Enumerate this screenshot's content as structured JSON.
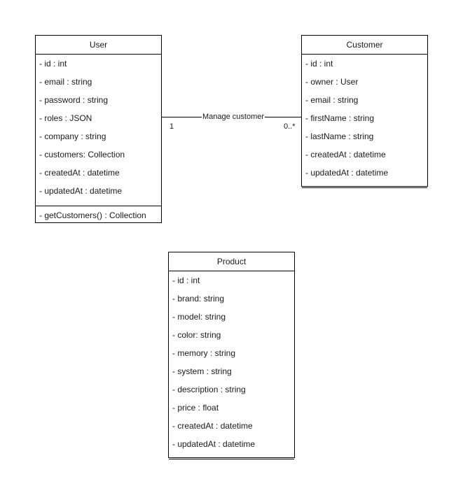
{
  "classes": {
    "user": {
      "name": "User",
      "attributes": [
        "- id : int",
        "- email : string",
        "- password : string",
        "- roles : JSON",
        "- company : string",
        "- customers: Collection",
        "- createdAt : datetime",
        "- updatedAt : datetime"
      ],
      "methods": [
        "- getCustomers() : Collection"
      ]
    },
    "customer": {
      "name": "Customer",
      "attributes": [
        "- id : int",
        "- owner : User",
        "- email : string",
        "- firstName : string",
        "- lastName : string",
        "- createdAt : datetime",
        "- updatedAt : datetime"
      ],
      "methods": []
    },
    "product": {
      "name": "Product",
      "attributes": [
        "- id : int",
        "- brand: string",
        "- model: string",
        "- color: string",
        "- memory : string",
        "- system : string",
        "- description : string",
        "- price : float",
        "- createdAt : datetime",
        "- updatedAt : datetime"
      ],
      "methods": []
    }
  },
  "association": {
    "label": "Manage customer",
    "source_multiplicity": "1",
    "target_multiplicity": "0..*"
  }
}
